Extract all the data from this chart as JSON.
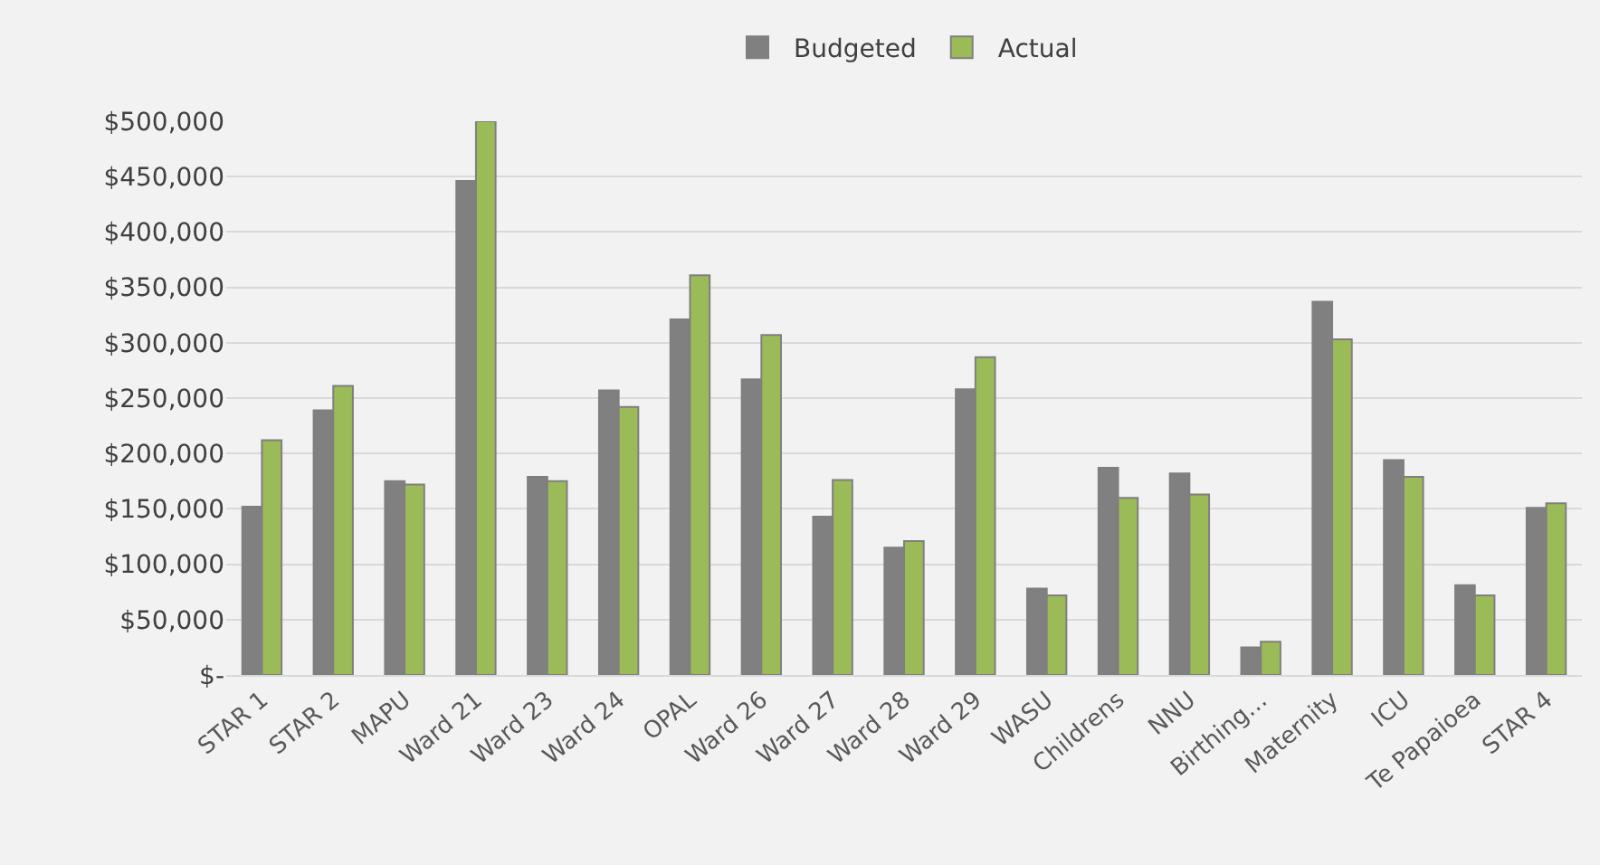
{
  "chart_data": {
    "type": "bar",
    "categories": [
      "STAR 1",
      "STAR 2",
      "MAPU",
      "Ward 21",
      "Ward 23",
      "Ward 24",
      "OPAL",
      "Ward 26",
      "Ward 27",
      "Ward 28",
      "Ward 29",
      "WASU",
      "Childrens",
      "NNU",
      "Birthing…",
      "Maternity",
      "ICU",
      "Te Papaioea",
      "STAR 4"
    ],
    "series": [
      {
        "name": "Budgeted",
        "color": "#808080",
        "values": [
          152000,
          239000,
          175000,
          446000,
          179000,
          257000,
          321000,
          267000,
          143000,
          115000,
          258000,
          78000,
          187000,
          182000,
          25000,
          337000,
          194000,
          81000,
          151000
        ]
      },
      {
        "name": "Actual",
        "color": "#9bbb59",
        "values": [
          212000,
          261000,
          172000,
          500000,
          175000,
          242000,
          361000,
          307000,
          176000,
          121000,
          287000,
          72000,
          160000,
          163000,
          30000,
          303000,
          179000,
          72000,
          155000
        ]
      }
    ],
    "ylim": [
      0,
      500000
    ],
    "yticks": [
      {
        "value": 0,
        "label": "$-"
      },
      {
        "value": 50000,
        "label": "$50,000"
      },
      {
        "value": 100000,
        "label": "$100,000"
      },
      {
        "value": 150000,
        "label": "$150,000"
      },
      {
        "value": 200000,
        "label": "$200,000"
      },
      {
        "value": 250000,
        "label": "$250,000"
      },
      {
        "value": 300000,
        "label": "$300,000"
      },
      {
        "value": 350000,
        "label": "$350,000"
      },
      {
        "value": 400000,
        "label": "$400,000"
      },
      {
        "value": 450000,
        "label": "$450,000"
      },
      {
        "value": 500000,
        "label": "$500,000"
      }
    ],
    "grid": "y",
    "legend": "top"
  }
}
